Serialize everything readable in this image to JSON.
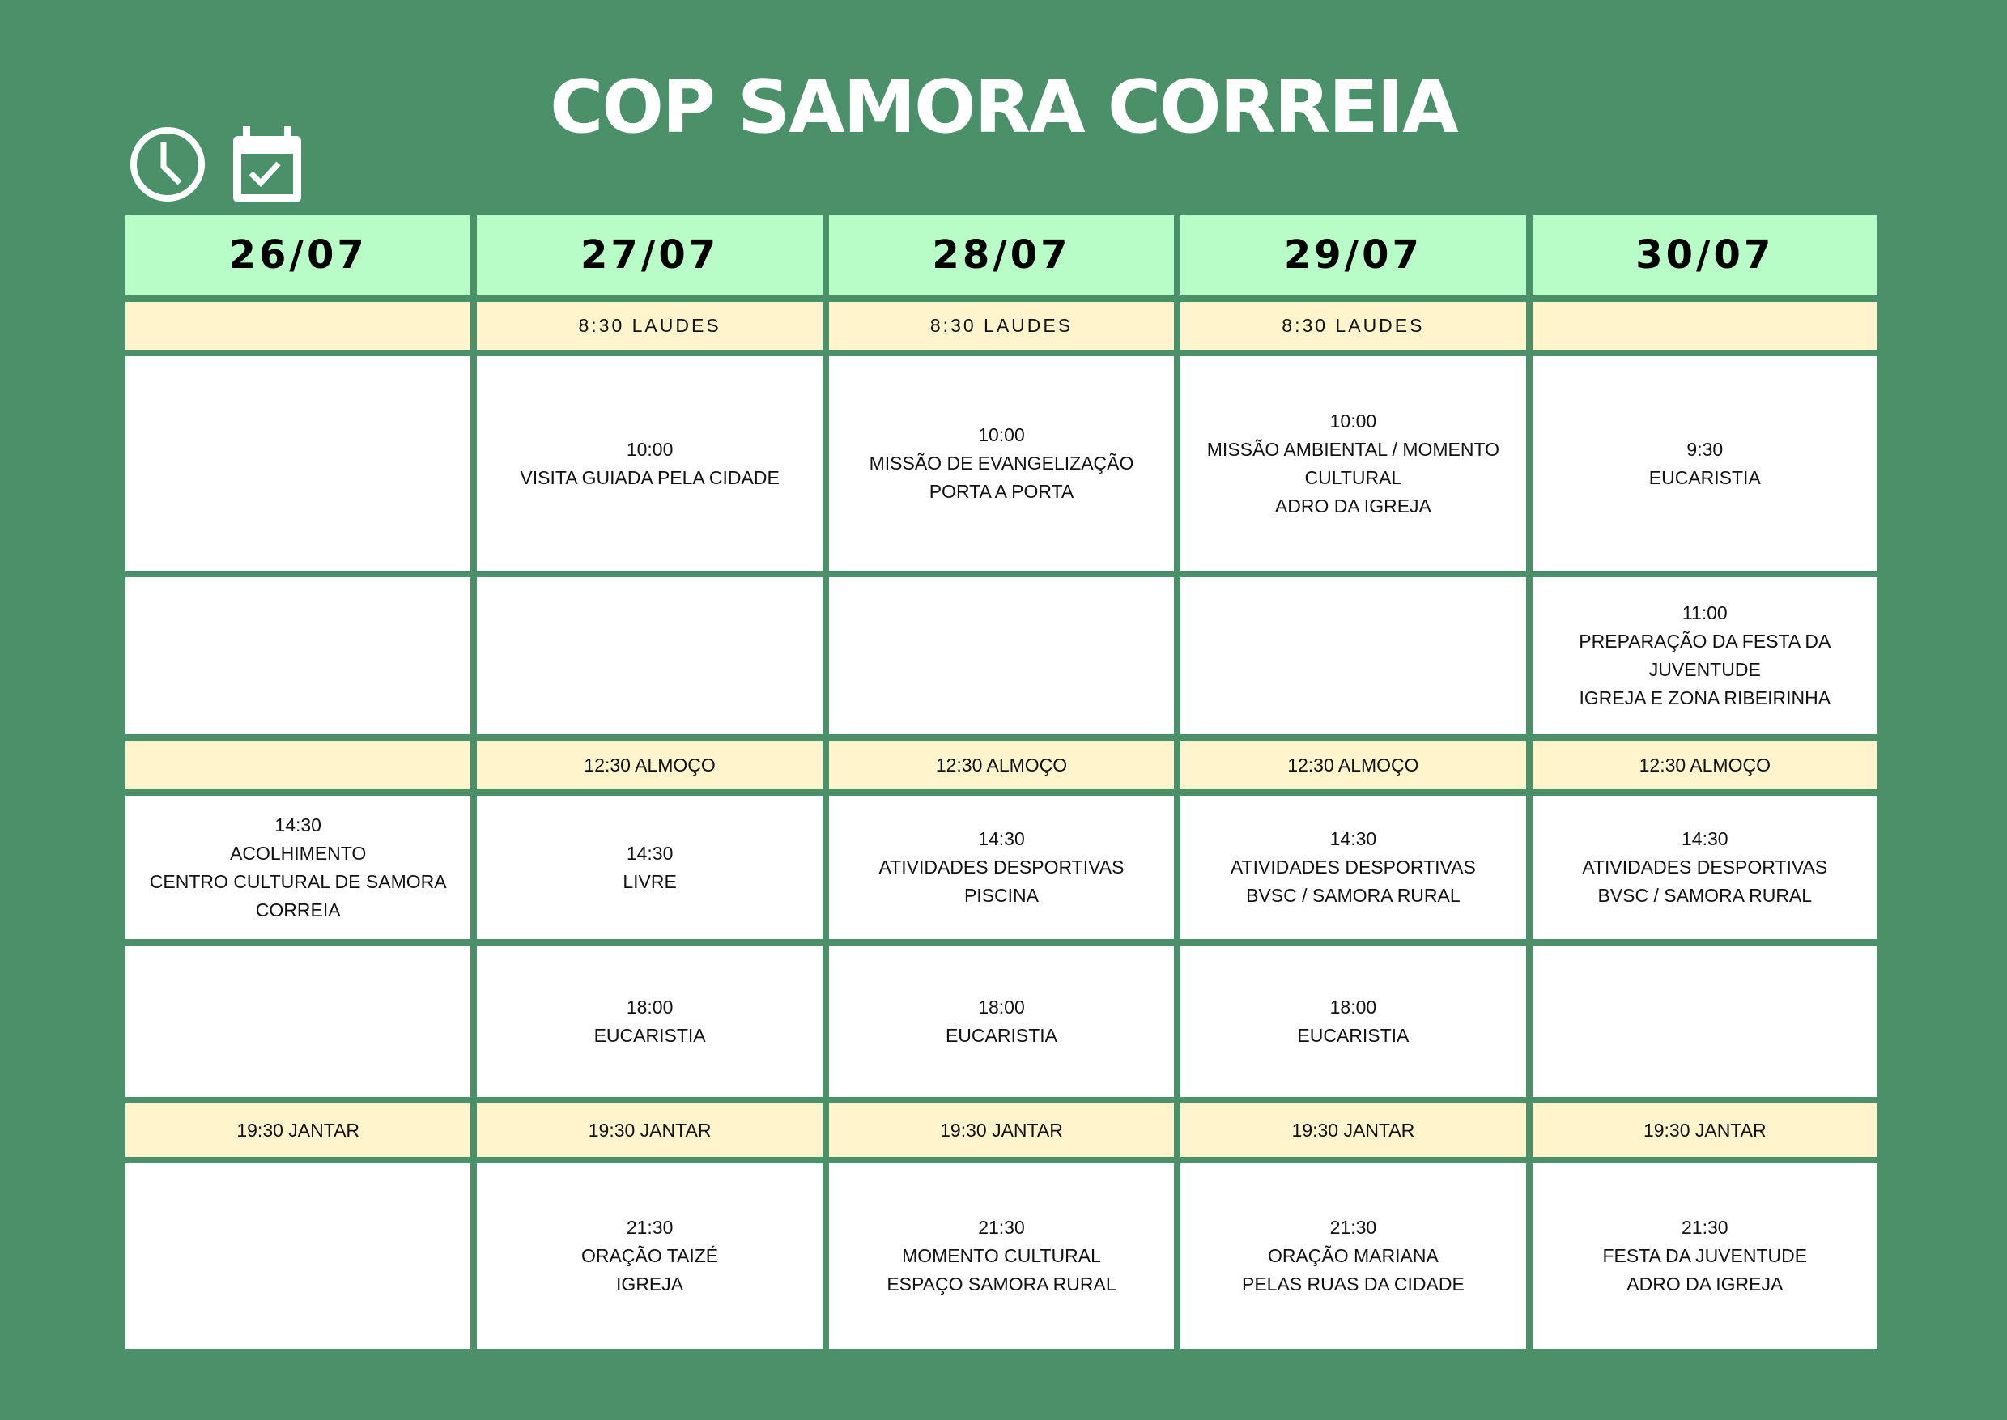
{
  "title": "COP SAMORA CORREIA",
  "icons": [
    "clock-icon",
    "calendar-check-icon"
  ],
  "colors": {
    "background": "#4a9169",
    "header": "#b8fcc8",
    "meal_row": "#fff4cc",
    "cell": "#ffffff"
  },
  "days": [
    "26/07",
    "27/07",
    "28/07",
    "29/07",
    "30/07"
  ],
  "rows": [
    {
      "type": "meal",
      "laudes": true,
      "cells": [
        [],
        [
          "8:30 LAUDES"
        ],
        [
          "8:30 LAUDES"
        ],
        [
          "8:30 LAUDES"
        ],
        []
      ]
    },
    {
      "type": "event",
      "cells": [
        [],
        [
          "10:00",
          "VISITA GUIADA PELA CIDADE"
        ],
        [
          "10:00",
          "MISSÃO DE EVANGELIZAÇÃO",
          "PORTA A PORTA"
        ],
        [
          "10:00",
          "MISSÃO AMBIENTAL / MOMENTO",
          "CULTURAL",
          "ADRO DA IGREJA"
        ],
        [
          "9:30",
          "EUCARISTIA"
        ]
      ]
    },
    {
      "type": "event",
      "cells": [
        [],
        [],
        [],
        [],
        [
          "11:00",
          "PREPARAÇÃO DA FESTA DA",
          "JUVENTUDE",
          "IGREJA E ZONA RIBEIRINHA"
        ]
      ]
    },
    {
      "type": "meal",
      "cells": [
        [],
        [
          "12:30 ALMOÇO"
        ],
        [
          "12:30 ALMOÇO"
        ],
        [
          "12:30 ALMOÇO"
        ],
        [
          "12:30 ALMOÇO"
        ]
      ]
    },
    {
      "type": "event",
      "cells": [
        [
          "14:30",
          "ACOLHIMENTO",
          "CENTRO CULTURAL DE SAMORA",
          "CORREIA"
        ],
        [
          "14:30",
          "LIVRE"
        ],
        [
          "14:30",
          "ATIVIDADES DESPORTIVAS",
          "PISCINA"
        ],
        [
          "14:30",
          "ATIVIDADES DESPORTIVAS",
          "BVSC / SAMORA RURAL"
        ],
        [
          "14:30",
          "ATIVIDADES DESPORTIVAS",
          "BVSC / SAMORA RURAL"
        ]
      ]
    },
    {
      "type": "event",
      "cells": [
        [],
        [
          "18:00",
          "EUCARISTIA"
        ],
        [
          "18:00",
          "EUCARISTIA"
        ],
        [
          "18:00",
          "EUCARISTIA"
        ],
        []
      ]
    },
    {
      "type": "meal",
      "cells": [
        [
          "19:30 JANTAR"
        ],
        [
          "19:30 JANTAR"
        ],
        [
          "19:30 JANTAR"
        ],
        [
          "19:30 JANTAR"
        ],
        [
          "19:30 JANTAR"
        ]
      ]
    },
    {
      "type": "event",
      "cells": [
        [],
        [
          "21:30",
          "ORAÇÃO TAIZÉ",
          "IGREJA"
        ],
        [
          "21:30",
          "MOMENTO CULTURAL",
          "ESPAÇO SAMORA RURAL"
        ],
        [
          "21:30",
          "ORAÇÃO MARIANA",
          "PELAS RUAS DA CIDADE"
        ],
        [
          "21:30",
          "FESTA DA JUVENTUDE",
          "ADRO DA IGREJA"
        ]
      ]
    }
  ]
}
